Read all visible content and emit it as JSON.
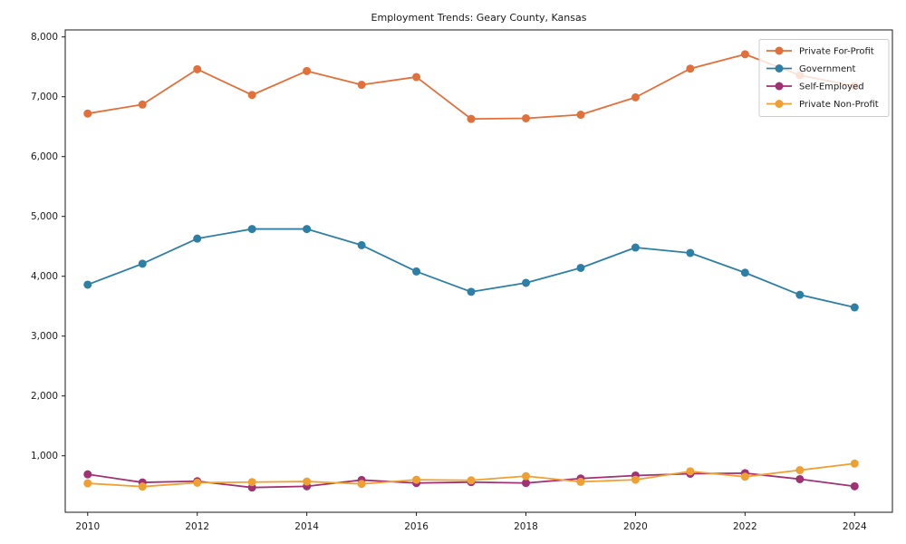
{
  "chart_data": {
    "type": "line",
    "title": "Employment Trends: Geary County, Kansas",
    "xlabel": "",
    "ylabel": "",
    "x": [
      2010,
      2011,
      2012,
      2013,
      2014,
      2015,
      2016,
      2017,
      2018,
      2019,
      2020,
      2021,
      2022,
      2023,
      2024
    ],
    "series": [
      {
        "name": "Private For-Profit",
        "color": "#e2703a",
        "values": [
          6720,
          6870,
          7460,
          7030,
          7430,
          7200,
          7330,
          6630,
          6640,
          6700,
          6990,
          7470,
          7710,
          7360,
          7180
        ]
      },
      {
        "name": "Government",
        "color": "#2e7fa6",
        "values": [
          3860,
          4210,
          4630,
          4790,
          4790,
          4520,
          4080,
          3740,
          3890,
          4140,
          4480,
          4390,
          4060,
          3690,
          3480
        ]
      },
      {
        "name": "Self-Employed",
        "color": "#a03172",
        "values": [
          690,
          555,
          575,
          470,
          490,
          595,
          545,
          560,
          545,
          620,
          670,
          700,
          710,
          610,
          490
        ]
      },
      {
        "name": "Private Non-Profit",
        "color": "#f0a032",
        "values": [
          540,
          485,
          550,
          560,
          570,
          530,
          600,
          590,
          660,
          565,
          600,
          740,
          650,
          760,
          870
        ]
      }
    ],
    "x_ticks": [
      2010,
      2012,
      2014,
      2016,
      2018,
      2020,
      2022,
      2024
    ],
    "x_tick_labels": [
      "2010",
      "2012",
      "2014",
      "2016",
      "2018",
      "2020",
      "2022",
      "2024"
    ],
    "y_ticks": [
      1000,
      2000,
      3000,
      4000,
      5000,
      6000,
      7000,
      8000
    ],
    "y_tick_labels": [
      "1,000",
      "2,000",
      "3,000",
      "4,000",
      "5,000",
      "6,000",
      "7,000",
      "8,000"
    ],
    "xlim": [
      2009.59,
      2024.69
    ],
    "ylim": [
      56,
      8117
    ],
    "grid": false,
    "legend_position": "upper right",
    "legend": [
      "Private For-Profit",
      "Government",
      "Self-Employed",
      "Private Non-Profit"
    ],
    "axis_color": "#1a1a1a",
    "text_color": "#1a1a1a",
    "legend_border_color": "#cccccc",
    "background": "#ffffff"
  }
}
